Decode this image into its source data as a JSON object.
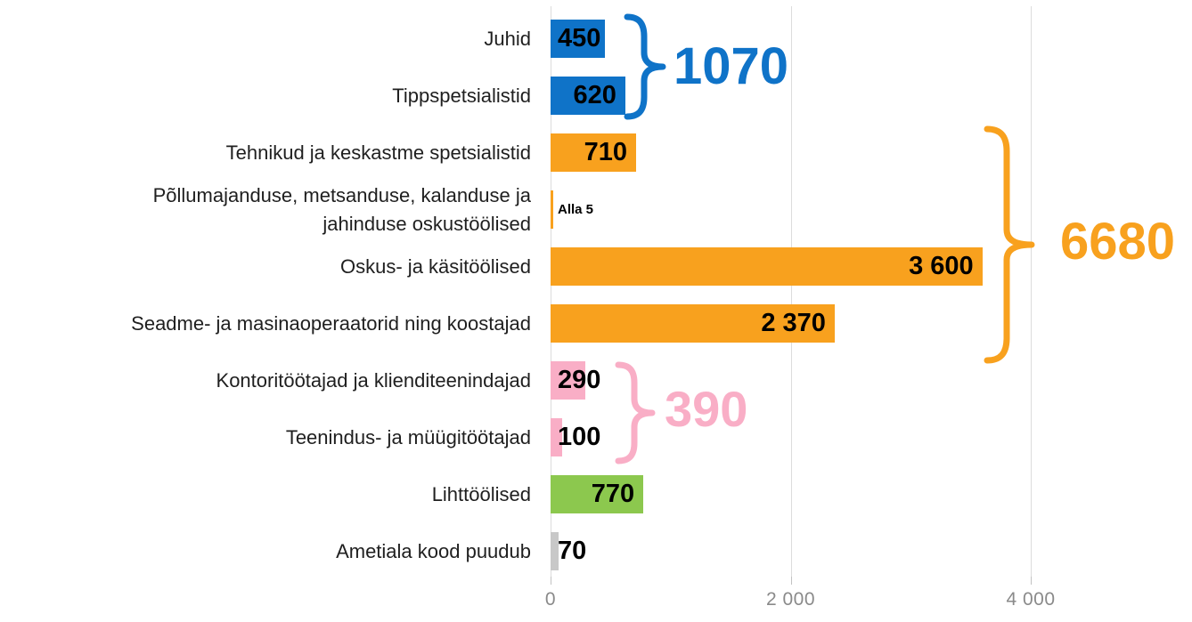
{
  "chart_data": {
    "type": "bar",
    "orientation": "horizontal",
    "title": "",
    "x_axis": {
      "ticks": [
        {
          "value": 0,
          "label": "0"
        },
        {
          "value": 2000,
          "label": "2 000"
        },
        {
          "value": 4000,
          "label": "4 000"
        }
      ],
      "max": 5300,
      "grid": true
    },
    "rows": [
      {
        "label": "Juhid",
        "value": 450,
        "display": "450",
        "color": "blue"
      },
      {
        "label": "Tippspetsialistid",
        "value": 620,
        "display": "620",
        "color": "blue"
      },
      {
        "label": "Tehnikud ja keskastme spetsialistid",
        "value": 710,
        "display": "710",
        "color": "orange"
      },
      {
        "label": "Põllumajanduse, metsanduse, kalanduse ja\njahinduse oskustöölised",
        "value": 5,
        "display": "Alla 5",
        "color": "orange"
      },
      {
        "label": "Oskus- ja käsitöölised",
        "value": 3600,
        "display": "3 600",
        "color": "orange"
      },
      {
        "label": "Seadme- ja masinaoperaatorid ning koostajad",
        "value": 2370,
        "display": "2 370",
        "color": "orange"
      },
      {
        "label": "Kontoritöötajad ja klienditeenindajad",
        "value": 290,
        "display": "290",
        "color": "pink"
      },
      {
        "label": "Teenindus- ja müügitöötajad",
        "value": 100,
        "display": "100",
        "color": "pink"
      },
      {
        "label": "Lihttöölised",
        "value": 770,
        "display": "770",
        "color": "green"
      },
      {
        "label": "Ametiala kood puudub",
        "value": 70,
        "display": "70",
        "color": "gray"
      }
    ],
    "groups": [
      {
        "label": "1070",
        "color": "blue",
        "from_row": 0,
        "to_row": 1
      },
      {
        "label": "6680",
        "color": "orange",
        "from_row": 2,
        "to_row": 5
      },
      {
        "label": "390",
        "color": "pink",
        "from_row": 6,
        "to_row": 7
      }
    ],
    "colors": {
      "blue": "#0F73C8",
      "orange": "#F8A11E",
      "pink": "#F9AEC6",
      "green": "#8CC84E",
      "gray": "#C8C8C8",
      "axis_text": "#8a8a8a",
      "grid": "#dcdcdc",
      "label_text": "#1f1f1f",
      "value_text": "#000000"
    }
  }
}
